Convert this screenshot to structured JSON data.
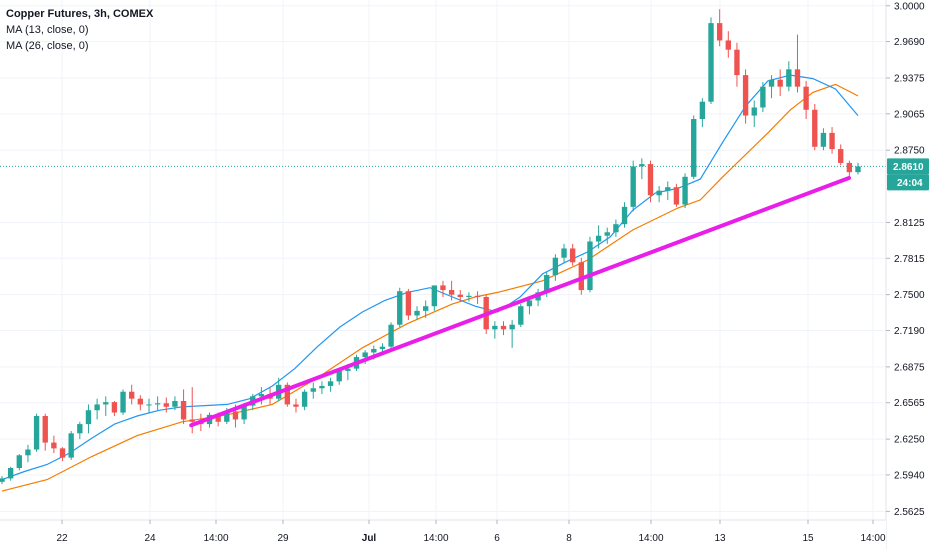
{
  "legend": {
    "title": "Copper Futures, 3h, COMEX",
    "ma13": "MA (13, close, 0)",
    "ma26": "MA (26, close, 0)"
  },
  "colors": {
    "up": "#26a69a",
    "down": "#ef5350",
    "ma13": "#2196f3",
    "ma26": "#f57c00",
    "trendline": "#e91ee9",
    "grid": "#f0f3fa",
    "axis_text": "#131722",
    "last_price_line": "#26a69a"
  },
  "price_axis": {
    "ticks": [
      "3.0000",
      "2.9690",
      "2.9375",
      "2.9065",
      "2.8750",
      "2.8125",
      "2.7815",
      "2.7500",
      "2.7190",
      "2.6875",
      "2.6565",
      "2.6250",
      "2.5940",
      "2.5625"
    ],
    "last_price_label": "2.8610",
    "countdown_label": "24:04"
  },
  "time_axis": {
    "labels": [
      {
        "text": "22",
        "bold": false
      },
      {
        "text": "24",
        "bold": false
      },
      {
        "text": "14:00",
        "bold": false
      },
      {
        "text": "29",
        "bold": false
      },
      {
        "text": "Jul",
        "bold": true
      },
      {
        "text": "14:00",
        "bold": false
      },
      {
        "text": "6",
        "bold": false
      },
      {
        "text": "8",
        "bold": false
      },
      {
        "text": "14:00",
        "bold": false
      },
      {
        "text": "13",
        "bold": false
      },
      {
        "text": "15",
        "bold": false
      },
      {
        "text": "14:00",
        "bold": false
      }
    ]
  },
  "chart_data": {
    "type": "candlestick",
    "title": "Copper Futures, 3h, COMEX",
    "ylim": [
      2.555,
      3.005
    ],
    "last_price": 2.861,
    "candles": [
      [
        2.588,
        2.593,
        2.586,
        2.591
      ],
      [
        2.591,
        2.601,
        2.589,
        2.6
      ],
      [
        2.6,
        2.612,
        2.598,
        2.611
      ],
      [
        2.611,
        2.62,
        2.605,
        2.616
      ],
      [
        2.616,
        2.647,
        2.614,
        2.645
      ],
      [
        2.645,
        2.647,
        2.615,
        2.622
      ],
      [
        2.622,
        2.628,
        2.613,
        2.617
      ],
      [
        2.617,
        2.618,
        2.606,
        2.609
      ],
      [
        2.609,
        2.632,
        2.607,
        2.63
      ],
      [
        2.63,
        2.64,
        2.625,
        2.638
      ],
      [
        2.638,
        2.655,
        2.63,
        2.65
      ],
      [
        2.65,
        2.66,
        2.642,
        2.655
      ],
      [
        2.655,
        2.662,
        2.645,
        2.657
      ],
      [
        2.657,
        2.658,
        2.645,
        2.648
      ],
      [
        2.648,
        2.668,
        2.646,
        2.666
      ],
      [
        2.666,
        2.672,
        2.655,
        2.66
      ],
      [
        2.66,
        2.663,
        2.65,
        2.655
      ],
      [
        2.655,
        2.66,
        2.648,
        2.655
      ],
      [
        2.655,
        2.662,
        2.65,
        2.656
      ],
      [
        2.656,
        2.661,
        2.648,
        2.653
      ],
      [
        2.653,
        2.662,
        2.65,
        2.658
      ],
      [
        2.658,
        2.668,
        2.638,
        2.642
      ],
      [
        2.642,
        2.67,
        2.63,
        2.64
      ],
      [
        2.64,
        2.647,
        2.632,
        2.638
      ],
      [
        2.638,
        2.648,
        2.635,
        2.646
      ],
      [
        2.646,
        2.648,
        2.636,
        2.64
      ],
      [
        2.64,
        2.652,
        2.638,
        2.649
      ],
      [
        2.649,
        2.655,
        2.635,
        2.642
      ],
      [
        2.642,
        2.656,
        2.638,
        2.654
      ],
      [
        2.654,
        2.664,
        2.65,
        2.662
      ],
      [
        2.662,
        2.67,
        2.655,
        2.664
      ],
      [
        2.664,
        2.67,
        2.655,
        2.66
      ],
      [
        2.66,
        2.678,
        2.658,
        2.672
      ],
      [
        2.672,
        2.674,
        2.653,
        2.655
      ],
      [
        2.655,
        2.66,
        2.648,
        2.653
      ],
      [
        2.653,
        2.668,
        2.65,
        2.666
      ],
      [
        2.666,
        2.674,
        2.66,
        2.669
      ],
      [
        2.669,
        2.675,
        2.664,
        2.671
      ],
      [
        2.671,
        2.678,
        2.666,
        2.675
      ],
      [
        2.675,
        2.686,
        2.672,
        2.684
      ],
      [
        2.684,
        2.69,
        2.676,
        2.686
      ],
      [
        2.686,
        2.698,
        2.684,
        2.696
      ],
      [
        2.696,
        2.702,
        2.69,
        2.7
      ],
      [
        2.7,
        2.706,
        2.694,
        2.703
      ],
      [
        2.703,
        2.708,
        2.698,
        2.705
      ],
      [
        2.705,
        2.726,
        2.702,
        2.724
      ],
      [
        2.724,
        2.756,
        2.722,
        2.753
      ],
      [
        2.753,
        2.755,
        2.728,
        2.732
      ],
      [
        2.732,
        2.74,
        2.728,
        2.736
      ],
      [
        2.736,
        2.745,
        2.73,
        2.74
      ],
      [
        2.74,
        2.756,
        2.736,
        2.758
      ],
      [
        2.758,
        2.762,
        2.748,
        2.754
      ],
      [
        2.754,
        2.762,
        2.745,
        2.75
      ],
      [
        2.75,
        2.754,
        2.744,
        2.748
      ],
      [
        2.748,
        2.752,
        2.744,
        2.749
      ],
      [
        2.749,
        2.753,
        2.742,
        2.748
      ],
      [
        2.748,
        2.75,
        2.716,
        2.72
      ],
      [
        2.72,
        2.727,
        2.712,
        2.723
      ],
      [
        2.723,
        2.727,
        2.715,
        2.72
      ],
      [
        2.72,
        2.728,
        2.704,
        2.724
      ],
      [
        2.724,
        2.742,
        2.722,
        2.74
      ],
      [
        2.74,
        2.748,
        2.733,
        2.745
      ],
      [
        2.745,
        2.755,
        2.74,
        2.752
      ],
      [
        2.752,
        2.77,
        2.748,
        2.767
      ],
      [
        2.767,
        2.785,
        2.762,
        2.782
      ],
      [
        2.782,
        2.794,
        2.778,
        2.79
      ],
      [
        2.79,
        2.794,
        2.775,
        2.778
      ],
      [
        2.778,
        2.782,
        2.75,
        2.754
      ],
      [
        2.754,
        2.8,
        2.752,
        2.796
      ],
      [
        2.796,
        2.81,
        2.79,
        2.801
      ],
      [
        2.801,
        2.808,
        2.794,
        2.804
      ],
      [
        2.804,
        2.815,
        2.8,
        2.811
      ],
      [
        2.811,
        2.83,
        2.808,
        2.826
      ],
      [
        2.826,
        2.866,
        2.822,
        2.861
      ],
      [
        2.861,
        2.868,
        2.85,
        2.863
      ],
      [
        2.863,
        2.866,
        2.83,
        2.836
      ],
      [
        2.836,
        2.844,
        2.83,
        2.84
      ],
      [
        2.84,
        2.848,
        2.832,
        2.843
      ],
      [
        2.843,
        2.846,
        2.826,
        2.828
      ],
      [
        2.828,
        2.855,
        2.825,
        2.852
      ],
      [
        2.852,
        2.905,
        2.85,
        2.902
      ],
      [
        2.902,
        2.92,
        2.895,
        2.917
      ],
      [
        2.917,
        2.99,
        2.915,
        2.985
      ],
      [
        2.985,
        2.997,
        2.965,
        2.97
      ],
      [
        2.97,
        2.978,
        2.955,
        2.962
      ],
      [
        2.962,
        2.968,
        2.93,
        2.94
      ],
      [
        2.94,
        2.945,
        2.898,
        2.905
      ],
      [
        2.905,
        2.918,
        2.895,
        2.912
      ],
      [
        2.912,
        2.934,
        2.908,
        2.93
      ],
      [
        2.93,
        2.94,
        2.92,
        2.936
      ],
      [
        2.936,
        2.945,
        2.922,
        2.93
      ],
      [
        2.93,
        2.952,
        2.926,
        2.945
      ],
      [
        2.945,
        2.975,
        2.925,
        2.93
      ],
      [
        2.93,
        2.935,
        2.902,
        2.91
      ],
      [
        2.91,
        2.915,
        2.875,
        2.878
      ],
      [
        2.878,
        2.894,
        2.875,
        2.89
      ],
      [
        2.89,
        2.895,
        2.872,
        2.876
      ],
      [
        2.876,
        2.88,
        2.862,
        2.864
      ],
      [
        2.864,
        2.866,
        2.85,
        2.856
      ],
      [
        2.856,
        2.864,
        2.854,
        2.861
      ]
    ],
    "ma13": [
      [
        0.0,
        2.59
      ],
      [
        0.05,
        2.597
      ],
      [
        0.1,
        2.603
      ],
      [
        0.15,
        2.613
      ],
      [
        0.2,
        2.626
      ],
      [
        0.25,
        2.638
      ],
      [
        0.3,
        2.645
      ],
      [
        0.35,
        2.65
      ],
      [
        0.4,
        2.653
      ],
      [
        0.45,
        2.654
      ],
      [
        0.5,
        2.655
      ],
      [
        0.55,
        2.66
      ],
      [
        0.6,
        2.671
      ],
      [
        0.65,
        2.686
      ],
      [
        0.7,
        2.705
      ],
      [
        0.75,
        2.722
      ],
      [
        0.8,
        2.735
      ],
      [
        0.85,
        2.745
      ],
      [
        0.9,
        2.752
      ],
      [
        0.95,
        2.756
      ],
      [
        1.0,
        2.748
      ],
      [
        1.05,
        2.74
      ],
      [
        1.1,
        2.735
      ],
      [
        1.15,
        2.748
      ],
      [
        1.2,
        2.768
      ],
      [
        1.25,
        2.778
      ],
      [
        1.3,
        2.787
      ],
      [
        1.35,
        2.8
      ],
      [
        1.4,
        2.823
      ],
      [
        1.45,
        2.838
      ],
      [
        1.5,
        2.842
      ],
      [
        1.55,
        2.85
      ],
      [
        1.6,
        2.882
      ],
      [
        1.65,
        2.913
      ],
      [
        1.7,
        2.935
      ],
      [
        1.75,
        2.94
      ],
      [
        1.8,
        2.937
      ],
      [
        1.85,
        2.928
      ],
      [
        1.9,
        2.905
      ]
    ],
    "ma26": [
      [
        0.0,
        2.58
      ],
      [
        0.1,
        2.59
      ],
      [
        0.2,
        2.61
      ],
      [
        0.3,
        2.628
      ],
      [
        0.4,
        2.64
      ],
      [
        0.5,
        2.646
      ],
      [
        0.6,
        2.655
      ],
      [
        0.7,
        2.678
      ],
      [
        0.8,
        2.704
      ],
      [
        0.9,
        2.725
      ],
      [
        1.0,
        2.742
      ],
      [
        1.05,
        2.748
      ],
      [
        1.1,
        2.752
      ],
      [
        1.2,
        2.762
      ],
      [
        1.3,
        2.78
      ],
      [
        1.4,
        2.806
      ],
      [
        1.5,
        2.825
      ],
      [
        1.55,
        2.832
      ],
      [
        1.6,
        2.852
      ],
      [
        1.7,
        2.89
      ],
      [
        1.75,
        2.91
      ],
      [
        1.8,
        2.925
      ],
      [
        1.85,
        2.932
      ],
      [
        1.9,
        2.922
      ]
    ],
    "trendline": [
      [
        0.42,
        2.637
      ],
      [
        1.88,
        2.851
      ]
    ]
  }
}
